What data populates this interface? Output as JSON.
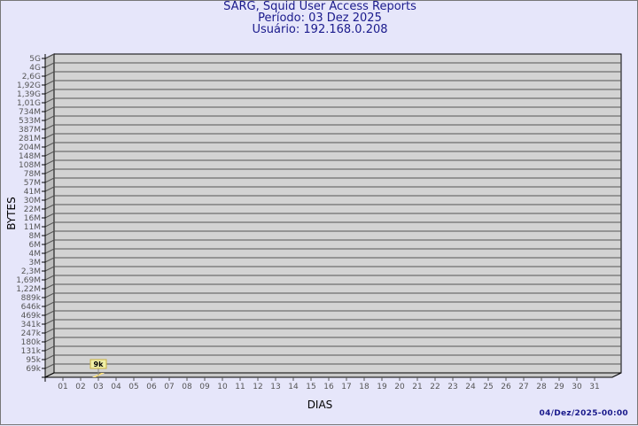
{
  "chart_data": {
    "type": "bar",
    "title": "SARG, Squid User Access Reports",
    "subtitle": [
      "Período: 03 Dez 2025",
      "Usuário: 192.168.0.208"
    ],
    "xlabel": "DIAS",
    "ylabel": "BYTES",
    "y_scale": "log",
    "y_tick_labels": [
      "5G",
      "4G",
      "2,6G",
      "1,92G",
      "1,39G",
      "1,01G",
      "734M",
      "533M",
      "387M",
      "281M",
      "204M",
      "148M",
      "108M",
      "78M",
      "57M",
      "41M",
      "30M",
      "22M",
      "16M",
      "11M",
      "8M",
      "6M",
      "4M",
      "3M",
      "2,3M",
      "1,69M",
      "1,22M",
      "889k",
      "646k",
      "469k",
      "341k",
      "247k",
      "180k",
      "131k",
      "95k",
      "69k"
    ],
    "categories": [
      "01",
      "02",
      "03",
      "04",
      "05",
      "06",
      "07",
      "08",
      "09",
      "10",
      "11",
      "12",
      "13",
      "14",
      "15",
      "16",
      "17",
      "18",
      "19",
      "20",
      "21",
      "22",
      "23",
      "24",
      "25",
      "26",
      "27",
      "28",
      "29",
      "30",
      "31"
    ],
    "bars": [
      {
        "category": "03",
        "value": 9000,
        "label": "9k"
      }
    ],
    "grid": true,
    "colors": {
      "background": "#e6e6fa",
      "plot": "#d3d3d3",
      "bar": "#ffe27a",
      "label_box": "#f0f0a8",
      "text": "#1a1a8c"
    }
  },
  "footer": {
    "timestamp": "04/Dez/2025-00:00"
  }
}
